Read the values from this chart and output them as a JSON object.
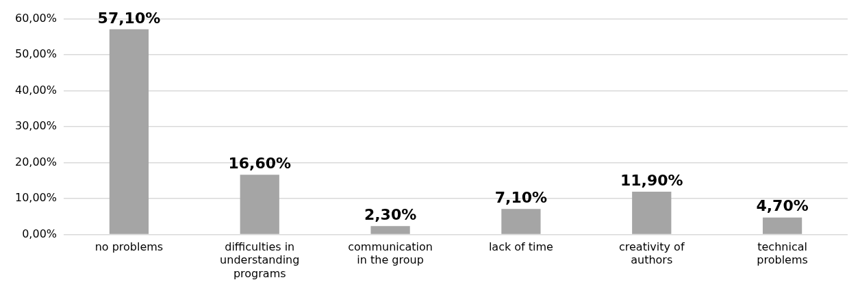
{
  "chart_data": {
    "type": "bar",
    "categories": [
      "no problems",
      "difficulties in understanding programs",
      "communication in the group",
      "lack of time",
      "creativity of authors",
      "technical problems"
    ],
    "values": [
      57.1,
      16.6,
      2.3,
      7.1,
      11.9,
      4.7
    ],
    "value_labels": [
      "57,10%",
      "16,60%",
      "2,30%",
      "7,10%",
      "11,90%",
      "4,70%"
    ],
    "color": "#a5a5a5",
    "ylim": [
      0,
      60
    ],
    "yticks": [
      {
        "value": 0,
        "label": "0,00%"
      },
      {
        "value": 10,
        "label": "10,00%"
      },
      {
        "value": 20,
        "label": "20,00%"
      },
      {
        "value": 30,
        "label": "30,00%"
      },
      {
        "value": 40,
        "label": "40,00%"
      },
      {
        "value": 50,
        "label": "50,00%"
      },
      {
        "value": 60,
        "label": "60,00%"
      }
    ],
    "grid": "y",
    "legend": false
  }
}
